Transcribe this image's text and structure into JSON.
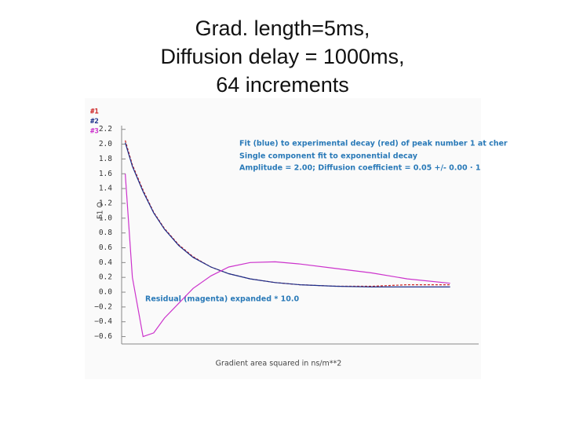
{
  "chart_data": {
    "type": "line",
    "title": [
      "Grad. length=5ms,",
      "Diffusion delay = 1000ms,",
      "64 increments"
    ],
    "xlabel": "Gradient area squared in ns/m**2",
    "ylabel": "F1 O",
    "annotations": [
      "Fit (blue) to experimental decay (red) of peak number 1 at cher",
      "Single component fit to  exponential decay",
      "Amplitude =    2.00;  Diffusion coefficient =  0.05 +/-   0.00 · 1",
      "Residual (magenta) expanded *    10.0"
    ],
    "x": [
      0.01,
      0.03,
      0.06,
      0.09,
      0.12,
      0.16,
      0.2,
      0.25,
      0.3,
      0.36,
      0.43,
      0.5,
      0.6,
      0.7,
      0.8,
      0.92
    ],
    "xlim": [
      0,
      1
    ],
    "ylim": [
      -0.7,
      2.25
    ],
    "yticks": [
      {
        "value": -0.6,
        "label": "−0.6"
      },
      {
        "value": -0.4,
        "label": "−0.4"
      },
      {
        "value": -0.2,
        "label": "−0.2"
      },
      {
        "value": 0,
        "label": "0.0"
      },
      0.2,
      0.4,
      0.6,
      0.8,
      {
        "value": 1,
        "label": "1.0"
      },
      1.2,
      1.4,
      1.6,
      1.8,
      {
        "value": 2,
        "label": "2.0"
      },
      2.2
    ],
    "grid": false,
    "series": [
      {
        "name": "#1",
        "color": "#cc2222",
        "values": [
          2.05,
          1.72,
          1.38,
          1.08,
          0.86,
          0.64,
          0.48,
          0.34,
          0.25,
          0.18,
          0.13,
          0.1,
          0.08,
          0.08,
          0.1,
          0.1
        ]
      },
      {
        "name": "#2",
        "color": "#1c2f8a",
        "values": [
          2.02,
          1.7,
          1.36,
          1.07,
          0.85,
          0.63,
          0.47,
          0.34,
          0.25,
          0.18,
          0.13,
          0.1,
          0.08,
          0.07,
          0.07,
          0.07
        ]
      },
      {
        "name": "#3",
        "color": "#cc33cc",
        "values": [
          1.6,
          0.2,
          -0.6,
          -0.55,
          -0.35,
          -0.15,
          0.05,
          0.22,
          0.34,
          0.4,
          0.41,
          0.38,
          0.32,
          0.26,
          0.18,
          0.12
        ]
      }
    ]
  }
}
